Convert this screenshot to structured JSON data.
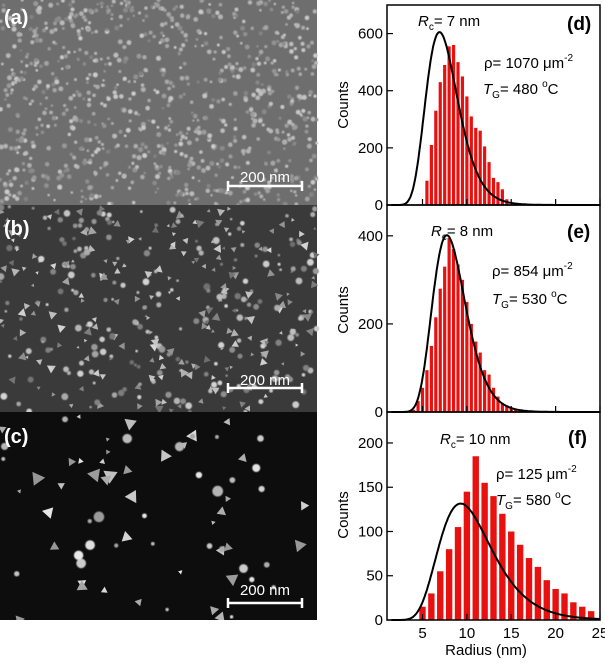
{
  "figure": {
    "sem_panels": [
      {
        "label": "(a)",
        "scale_bar": "200 nm",
        "brightness": "gray-fine"
      },
      {
        "label": "(b)",
        "scale_bar": "200 nm",
        "brightness": "mid"
      },
      {
        "label": "(c)",
        "scale_bar": "200 nm",
        "brightness": "dark-sparse"
      }
    ],
    "x_axis_label": "Radius (nm)",
    "y_axis_label": "Counts"
  },
  "colors": {
    "bar": "#e8110f",
    "fit_line": "#000000",
    "axis": "#000000"
  },
  "chart_data": [
    {
      "type": "bar",
      "panel_label": "(d)",
      "rc_symbol": "R",
      "rc_sub": "c",
      "rc_value": "= 7 nm",
      "rho_text": "ρ= 1070 μm",
      "rho_exp": "-2",
      "tg_symbol": "T",
      "tg_sub": "G",
      "tg_value": "= 480 ",
      "tg_deg": "o",
      "tg_unit": "C",
      "ylabel": "Counts",
      "xlim": [
        1,
        25
      ],
      "ylim": [
        0,
        700
      ],
      "yticks": [
        0,
        200,
        400,
        600
      ],
      "bar_x": [
        5.5,
        6,
        6.5,
        7,
        7.5,
        8,
        8.5,
        9,
        9.5,
        10,
        10.5,
        11,
        11.5,
        12,
        12.5,
        13,
        13.5,
        14,
        14.5
      ],
      "bar_values": [
        85,
        210,
        330,
        430,
        490,
        555,
        560,
        500,
        450,
        380,
        310,
        270,
        260,
        205,
        150,
        95,
        80,
        55,
        20
      ],
      "fit": {
        "peak_x": 7.4,
        "peak_y": 585,
        "sigma": 0.26
      }
    },
    {
      "type": "bar",
      "panel_label": "(e)",
      "rc_symbol": "R",
      "rc_sub": "c",
      "rc_value": "= 8 nm",
      "rho_text": "ρ= 854 μm",
      "rho_exp": "-2",
      "tg_symbol": "T",
      "tg_sub": "G",
      "tg_value": "= 530 ",
      "tg_deg": "o",
      "tg_unit": "C",
      "ylabel": "Counts",
      "xlim": [
        1,
        25
      ],
      "ylim": [
        0,
        470
      ],
      "yticks": [
        0,
        200,
        400
      ],
      "bar_x": [
        4,
        4.5,
        5,
        5.5,
        6,
        6.5,
        7,
        7.5,
        8,
        8.5,
        9,
        9.5,
        10,
        10.5,
        11,
        11.5,
        12,
        12.5,
        13,
        13.5,
        14,
        14.5,
        15,
        15.5,
        16
      ],
      "bar_values": [
        5,
        25,
        55,
        95,
        150,
        215,
        280,
        330,
        395,
        370,
        335,
        300,
        250,
        200,
        160,
        135,
        95,
        85,
        55,
        35,
        20,
        15,
        8,
        5,
        3
      ],
      "fit": {
        "peak_x": 8.2,
        "peak_y": 390,
        "sigma": 0.24
      }
    },
    {
      "type": "bar",
      "panel_label": "(f)",
      "rc_symbol": "R",
      "rc_sub": "c",
      "rc_value": "= 10 nm",
      "rho_text": "ρ= 125 μm",
      "rho_exp": "-2",
      "tg_symbol": "T",
      "tg_sub": "G",
      "tg_value": "= 580 ",
      "tg_deg": "o",
      "tg_unit": "C",
      "ylabel": "Counts",
      "xlabel": "Radius (nm)",
      "xlim": [
        1,
        25
      ],
      "ylim": [
        0,
        235
      ],
      "yticks": [
        0,
        50,
        100,
        150,
        200
      ],
      "xticks": [
        5,
        10,
        15,
        20,
        25
      ],
      "bar_x": [
        5,
        6,
        7,
        8,
        9,
        10,
        11,
        12,
        13,
        14,
        15,
        16,
        17,
        18,
        19,
        20,
        21,
        22,
        23,
        24
      ],
      "bar_values": [
        15,
        30,
        55,
        80,
        105,
        145,
        185,
        155,
        140,
        120,
        100,
        85,
        70,
        60,
        45,
        35,
        30,
        20,
        15,
        10
      ],
      "fit": {
        "peak_x": 10.3,
        "peak_y": 125,
        "sigma": 0.32
      }
    }
  ]
}
